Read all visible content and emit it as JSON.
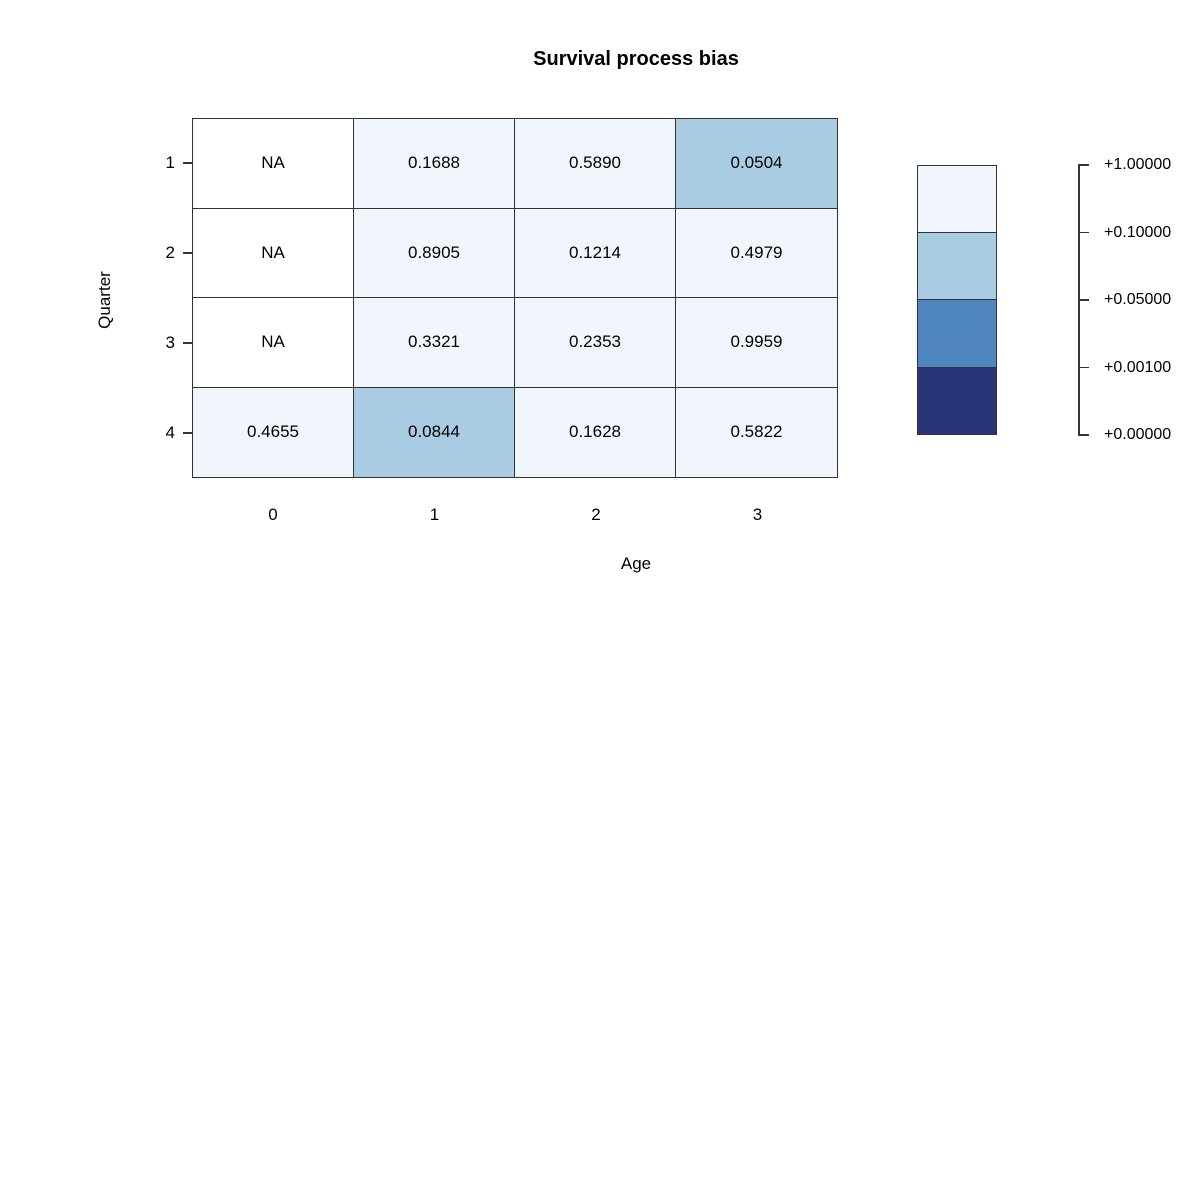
{
  "chart_data": {
    "type": "heatmap",
    "title": "Survival process bias",
    "xlabel": "Age",
    "ylabel": "Quarter",
    "columns": [
      "0",
      "1",
      "2",
      "3"
    ],
    "rows": [
      "1",
      "2",
      "3",
      "4"
    ],
    "na_label": "NA",
    "values": [
      [
        null,
        0.1688,
        0.589,
        0.0504
      ],
      [
        null,
        0.8905,
        0.1214,
        0.4979
      ],
      [
        null,
        0.3321,
        0.2353,
        0.9959
      ],
      [
        0.4655,
        0.0844,
        0.1628,
        0.5822
      ]
    ],
    "cells": [
      [
        {
          "label": "NA",
          "color": "#FFFFFF"
        },
        {
          "label": "0.1688",
          "color": "#F0F6FB"
        },
        {
          "label": "0.5890",
          "color": "#F0F6FB"
        },
        {
          "label": "0.0504",
          "color": "#A9CCE3"
        }
      ],
      [
        {
          "label": "NA",
          "color": "#FFFFFF"
        },
        {
          "label": "0.8905",
          "color": "#F0F6FB"
        },
        {
          "label": "0.1214",
          "color": "#F0F6FB"
        },
        {
          "label": "0.4979",
          "color": "#F0F6FB"
        }
      ],
      [
        {
          "label": "NA",
          "color": "#FFFFFF"
        },
        {
          "label": "0.3321",
          "color": "#F0F6FB"
        },
        {
          "label": "0.2353",
          "color": "#F0F6FB"
        },
        {
          "label": "0.9959",
          "color": "#F0F6FB"
        }
      ],
      [
        {
          "label": "0.4655",
          "color": "#F0F6FB"
        },
        {
          "label": "0.0844",
          "color": "#A9CCE3"
        },
        {
          "label": "0.1628",
          "color": "#F0F6FB"
        },
        {
          "label": "0.5822",
          "color": "#F0F6FB"
        }
      ]
    ],
    "legend": {
      "colors": [
        "#F0F6FB",
        "#A9CCE3",
        "#4F86BF",
        "#283577"
      ],
      "tick_labels": [
        "+1.00000",
        "+0.10000",
        "+0.05000",
        "+0.00100",
        "+0.00000"
      ]
    },
    "layout": {
      "grid_lines": "on",
      "legend_position": "right",
      "color_scale": "Blues, discrete breaks at 0, 0.001, 0.05, 0.1, 1"
    }
  }
}
